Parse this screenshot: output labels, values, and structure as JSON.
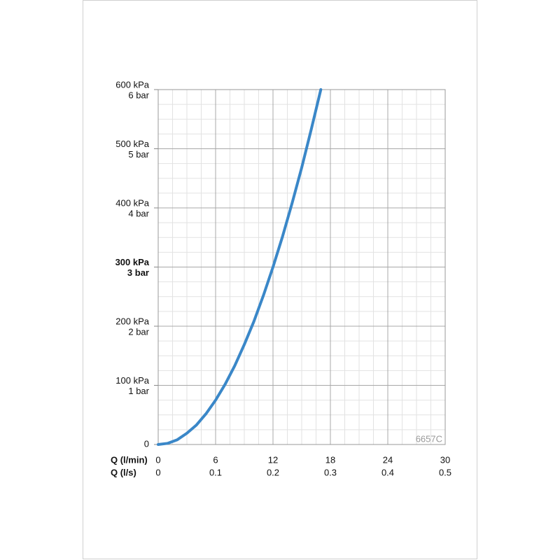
{
  "chart_data": {
    "type": "line",
    "xlabel": "Q (l/min)",
    "x2label": "Q (l/s)",
    "annotation": "6657C",
    "x": [
      0,
      1,
      2,
      3,
      4,
      5,
      6,
      7,
      8,
      9,
      10,
      11,
      12,
      13,
      14,
      15,
      16,
      17
    ],
    "series": [
      {
        "color": "#3a87c8",
        "values": [
          0,
          2,
          8,
          19,
          33,
          52,
          75,
          102,
          133,
          169,
          208,
          252,
          300,
          352,
          408,
          468,
          533,
          600
        ]
      }
    ],
    "xlim": [
      0,
      30
    ],
    "xticks": [
      0,
      6,
      12,
      18,
      24,
      30
    ],
    "x2lim": [
      0,
      0.5
    ],
    "x2ticks": [
      0,
      0.1,
      0.2,
      0.3,
      0.4,
      0.5
    ],
    "ylim": [
      0,
      600
    ],
    "yticks": [
      0,
      {
        "value": 100,
        "label": [
          "100 kPa",
          "1 bar"
        ]
      },
      {
        "value": 200,
        "label": [
          "200 kPa",
          "2 bar"
        ]
      },
      {
        "value": 300,
        "label": [
          "300 kPa",
          "3 bar"
        ]
      },
      {
        "value": 400,
        "label": [
          "400 kPa",
          "4 bar"
        ]
      },
      {
        "value": 500,
        "label": [
          "500 kPa",
          "5 bar"
        ]
      },
      {
        "value": 600,
        "label": [
          "600 kPa",
          "6 bar"
        ]
      }
    ],
    "bold_ytick": 300,
    "grid": true,
    "minor_divisions": 4
  }
}
